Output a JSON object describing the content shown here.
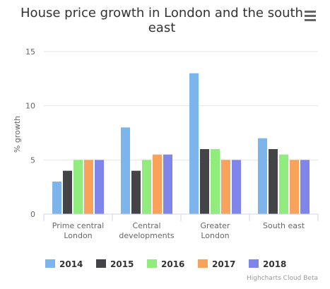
{
  "chart_data": {
    "type": "bar",
    "title": [
      "House price growth in London and the south",
      "east"
    ],
    "ylabel": "% growth",
    "xlabel": "",
    "ylim": [
      0,
      15
    ],
    "yticks": [
      0,
      5,
      10,
      15
    ],
    "grid": true,
    "legend_position": "bottom",
    "categories": [
      [
        "Prime central",
        "London"
      ],
      [
        "Central",
        "developments"
      ],
      [
        "Greater",
        "London"
      ],
      [
        "South east"
      ]
    ],
    "series": [
      {
        "name": "2014",
        "color": "#7cb5ec",
        "values": [
          3,
          8,
          13,
          7
        ]
      },
      {
        "name": "2015",
        "color": "#434348",
        "values": [
          4,
          4,
          6,
          6
        ]
      },
      {
        "name": "2016",
        "color": "#90ed7d",
        "values": [
          5,
          5,
          6,
          5.5
        ]
      },
      {
        "name": "2017",
        "color": "#f7a35c",
        "values": [
          5,
          5.5,
          5,
          5
        ]
      },
      {
        "name": "2018",
        "color": "#8085e9",
        "values": [
          5,
          5.5,
          5,
          5
        ]
      }
    ]
  },
  "credits": "Highcharts Cloud Beta",
  "menu_icon": "hamburger-menu-icon"
}
